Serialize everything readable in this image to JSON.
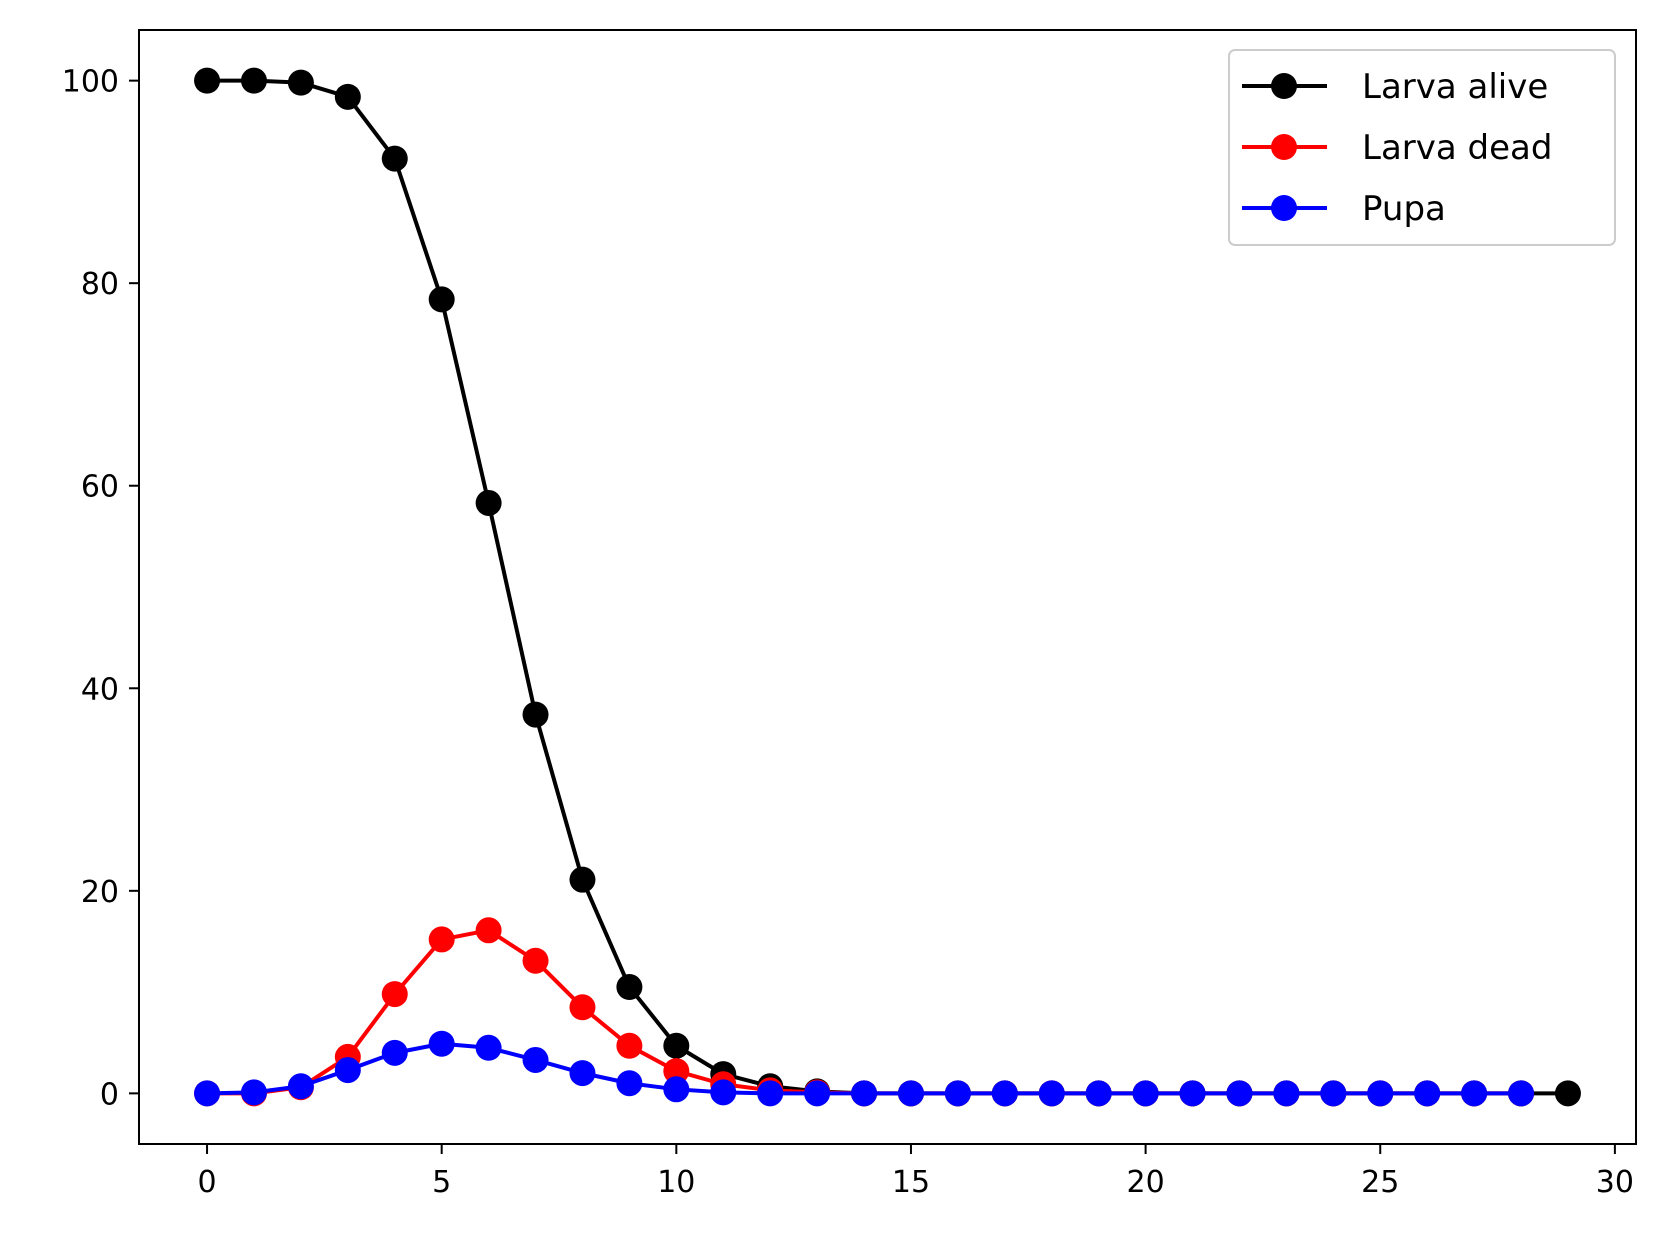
{
  "chart_data": {
    "type": "line",
    "title": "",
    "xlabel": "",
    "ylabel": "",
    "xlim": [
      -1.45,
      30.45
    ],
    "ylim": [
      -5,
      105
    ],
    "xticks": [
      0,
      5,
      10,
      15,
      20,
      25,
      30
    ],
    "yticks": [
      0,
      20,
      40,
      60,
      80,
      100
    ],
    "grid": false,
    "legend_position": "top-right",
    "series": [
      {
        "name": "Larva alive",
        "color": "#000000",
        "x": [
          0,
          1,
          2,
          3,
          4,
          5,
          6,
          7,
          8,
          9,
          10,
          11,
          12,
          13,
          14,
          15,
          16,
          17,
          18,
          19,
          20,
          21,
          22,
          23,
          24,
          25,
          26,
          27,
          28,
          29
        ],
        "values": [
          100,
          100,
          99.8,
          98.4,
          92.3,
          78.4,
          58.3,
          37.4,
          21.1,
          10.5,
          4.7,
          1.9,
          0.7,
          0.2,
          0,
          0,
          0,
          0,
          0,
          0,
          0,
          0,
          0,
          0,
          0,
          0,
          0,
          0,
          0,
          0
        ]
      },
      {
        "name": "Larva dead",
        "color": "#ff0000",
        "x": [
          0,
          1,
          2,
          3,
          4,
          5,
          6,
          7,
          8,
          9,
          10,
          11,
          12,
          13,
          14,
          15,
          16,
          17,
          18,
          19,
          20,
          21,
          22,
          23,
          24,
          25,
          26,
          27,
          28
        ],
        "values": [
          0,
          0,
          0.6,
          3.6,
          9.8,
          15.2,
          16.1,
          13.1,
          8.5,
          4.7,
          2.2,
          0.9,
          0.3,
          0.1,
          0,
          0,
          0,
          0,
          0,
          0,
          0,
          0,
          0,
          0,
          0,
          0,
          0,
          0,
          0
        ]
      },
      {
        "name": "Pupa",
        "color": "#0000ff",
        "x": [
          0,
          1,
          2,
          3,
          4,
          5,
          6,
          7,
          8,
          9,
          10,
          11,
          12,
          13,
          14,
          15,
          16,
          17,
          18,
          19,
          20,
          21,
          22,
          23,
          24,
          25,
          26,
          27,
          28
        ],
        "values": [
          0,
          0.1,
          0.7,
          2.3,
          4.0,
          4.9,
          4.5,
          3.3,
          2.0,
          1.0,
          0.4,
          0.1,
          0,
          0,
          0,
          0,
          0,
          0,
          0,
          0,
          0,
          0,
          0,
          0,
          0,
          0,
          0,
          0,
          0
        ]
      }
    ]
  }
}
